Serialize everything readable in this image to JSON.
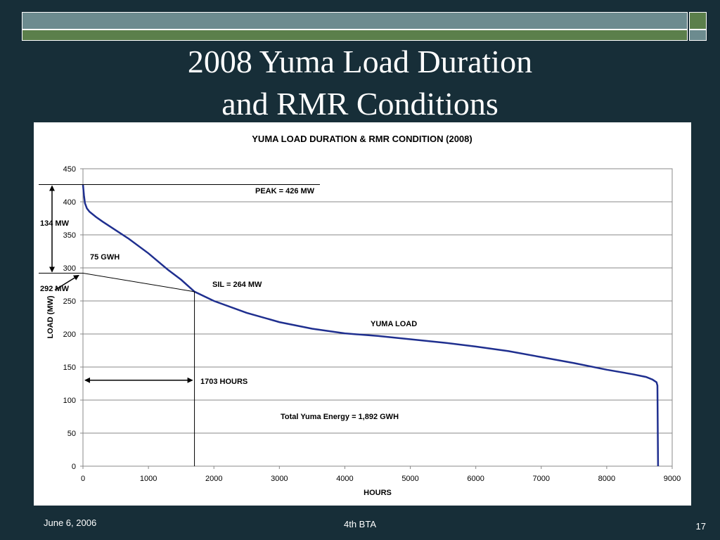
{
  "slide": {
    "title_line1": "2008 Yuma Load Duration",
    "title_line2": "and RMR Conditions",
    "footer_date": "June 6, 2006",
    "footer_center": "4th BTA",
    "page_number": "17"
  },
  "colors": {
    "background": "#172e38",
    "bar_top": "#6c8b8f",
    "bar_green": "#5b7f4b",
    "series": "#1f2f8f"
  },
  "chart_data": {
    "type": "line",
    "title": "YUMA LOAD DURATION & RMR CONDITION (2008)",
    "xlabel": "HOURS",
    "ylabel": "LOAD (MW)",
    "xlim": [
      0,
      9000
    ],
    "ylim": [
      0,
      450
    ],
    "xticks": [
      0,
      1000,
      2000,
      3000,
      4000,
      5000,
      6000,
      7000,
      8000,
      9000
    ],
    "yticks": [
      0,
      50,
      100,
      150,
      200,
      250,
      300,
      350,
      400,
      450
    ],
    "grid": "horizontal",
    "series": [
      {
        "name": "YUMA LOAD",
        "x": [
          0,
          15,
          30,
          60,
          100,
          200,
          300,
          500,
          700,
          1000,
          1300,
          1500,
          1703,
          2000,
          2500,
          3000,
          3500,
          4000,
          4500,
          5000,
          5500,
          6000,
          6500,
          7000,
          7500,
          8000,
          8400,
          8600,
          8700,
          8760,
          8775,
          8784
        ],
        "y": [
          426,
          410,
          398,
          390,
          385,
          377,
          370,
          357,
          344,
          322,
          297,
          282,
          264,
          250,
          232,
          218,
          208,
          201,
          197,
          192,
          187,
          181,
          174,
          165,
          156,
          146,
          139,
          135,
          131,
          127,
          122,
          0
        ]
      }
    ],
    "annotations": {
      "peak": "PEAK = 426 MW",
      "sil": "SIL = 264 MW",
      "series_label": "YUMA LOAD",
      "hours": "1703 HOURS",
      "energy": "Total Yuma Energy = 1,892 GWH",
      "gwh": "75 GWH",
      "mw_134": "134 MW",
      "mw_292": "292 MW"
    },
    "reference_values": {
      "peak_mw": 426,
      "sil_mw": 264,
      "rmr_hours": 1703,
      "load_292_mw": 292
    }
  }
}
